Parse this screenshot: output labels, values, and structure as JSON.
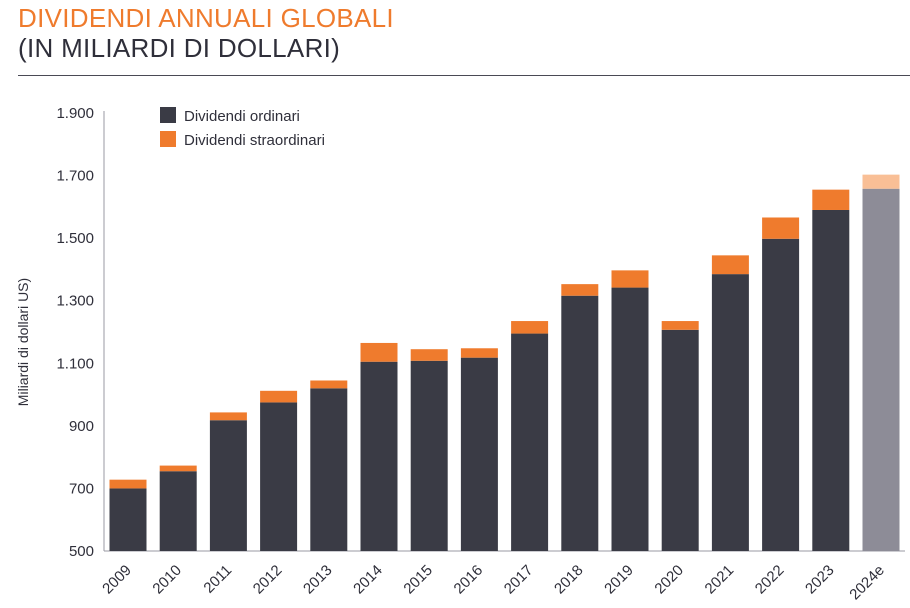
{
  "header": {
    "title": "DIVIDENDI ANNUALI GLOBALI",
    "subtitle": "(IN MILIARDI DI DOLLARI)"
  },
  "colors": {
    "ordinary": "#3a3b45",
    "special": "#ef7b2d",
    "estimate_ordinary": "#8d8c97",
    "estimate_special": "#f9bf96"
  },
  "chart_data": {
    "type": "bar",
    "stacked": true,
    "categories": [
      "2009",
      "2010",
      "2011",
      "2012",
      "2013",
      "2014",
      "2015",
      "2016",
      "2017",
      "2018",
      "2019",
      "2020",
      "2021",
      "2022",
      "2023",
      "2024e"
    ],
    "series": [
      {
        "name": "Dividendi ordinari",
        "values": [
          700,
          755,
          918,
          975,
          1020,
          1105,
          1108,
          1118,
          1195,
          1316,
          1342,
          1207,
          1385,
          1498,
          1590,
          1658
        ]
      },
      {
        "name": "Dividendi straordinari",
        "values": [
          28,
          18,
          25,
          37,
          25,
          60,
          37,
          30,
          40,
          37,
          55,
          28,
          60,
          68,
          65,
          45
        ]
      }
    ],
    "estimate_categories": [
      "2024e"
    ],
    "ylabel": "Miliardi di dollari US)",
    "yticks": [
      "1.900",
      "1.700",
      "1.500",
      "1.300",
      "1.100",
      "900",
      "700",
      "500"
    ],
    "ytick_values": [
      1900,
      1700,
      1500,
      1300,
      1100,
      900,
      700,
      500
    ],
    "ylim": [
      500,
      1900
    ],
    "grid": false,
    "legend_position": "top-left"
  }
}
